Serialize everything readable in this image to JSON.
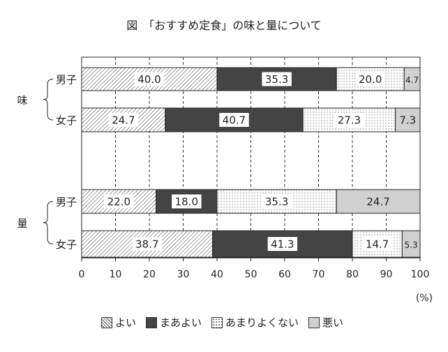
{
  "chart_data": {
    "type": "bar",
    "orientation": "horizontal",
    "stacked": true,
    "title": "図　「おすすめ定食」の味と量について",
    "unit_label": "(%)",
    "xlim": [
      0,
      100
    ],
    "xticks": [
      "0",
      "10",
      "20",
      "30",
      "40",
      "50",
      "60",
      "70",
      "80",
      "90",
      "100"
    ],
    "grid": "vertical-dashed",
    "legend_position": "bottom",
    "groups": [
      {
        "label": "味",
        "rows": [
          {
            "label": "男子",
            "values": [
              40.0,
              35.3,
              20.0,
              4.7
            ],
            "labels": [
              "40.0",
              "35.3",
              "20.0",
              "4.7"
            ]
          },
          {
            "label": "女子",
            "values": [
              24.7,
              40.7,
              27.3,
              7.3
            ],
            "labels": [
              "24.7",
              "40.7",
              "27.3",
              "7.3"
            ]
          }
        ]
      },
      {
        "label": "量",
        "rows": [
          {
            "label": "男子",
            "values": [
              22.0,
              18.0,
              35.3,
              24.7
            ],
            "labels": [
              "22.0",
              "18.0",
              "35.3",
              "24.7"
            ]
          },
          {
            "label": "女子",
            "values": [
              38.7,
              41.3,
              14.7,
              5.3
            ],
            "labels": [
              "38.7",
              "41.3",
              "14.7",
              "5.3"
            ]
          }
        ]
      }
    ],
    "series": [
      {
        "name": "よい",
        "fill": "hatch",
        "color": "#555555"
      },
      {
        "name": "まあよい",
        "fill": "solid",
        "color": "#444444"
      },
      {
        "name": "あまりよくない",
        "fill": "dots",
        "color": "#666666"
      },
      {
        "name": "悪い",
        "fill": "solid",
        "color": "#d0d0d0"
      }
    ]
  }
}
